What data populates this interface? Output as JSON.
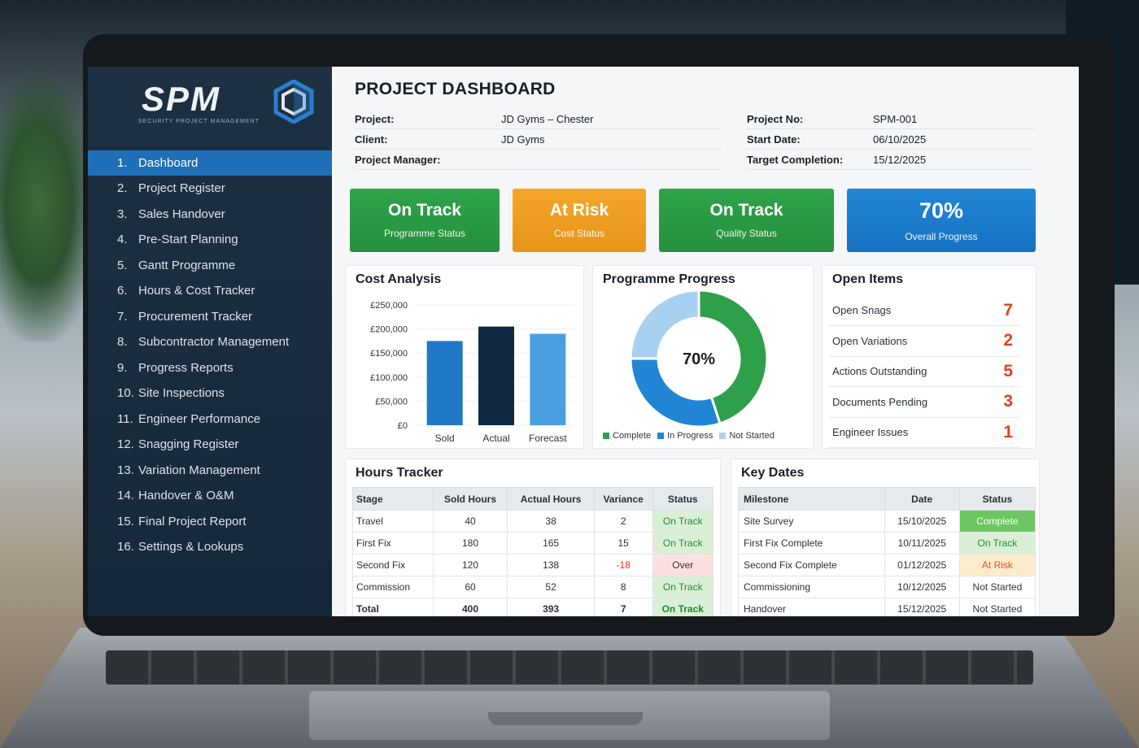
{
  "app": {
    "brand": "SPM",
    "brand_subtitle": "SECURITY PROJECT MANAGEMENT",
    "page_title": "PROJECT DASHBOARD"
  },
  "sidebar": {
    "items": [
      {
        "num": "1.",
        "label": "Dashboard",
        "active": true
      },
      {
        "num": "2.",
        "label": "Project Register"
      },
      {
        "num": "3.",
        "label": "Sales Handover"
      },
      {
        "num": "4.",
        "label": "Pre-Start Planning"
      },
      {
        "num": "5.",
        "label": "Gantt Programme"
      },
      {
        "num": "6.",
        "label": "Hours & Cost Tracker"
      },
      {
        "num": "7.",
        "label": "Procurement Tracker"
      },
      {
        "num": "8.",
        "label": "Subcontractor Management"
      },
      {
        "num": "9.",
        "label": "Progress Reports"
      },
      {
        "num": "10.",
        "label": "Site Inspections"
      },
      {
        "num": "11.",
        "label": "Engineer Performance"
      },
      {
        "num": "12.",
        "label": "Snagging Register"
      },
      {
        "num": "13.",
        "label": "Variation Management"
      },
      {
        "num": "14.",
        "label": "Handover & O&M"
      },
      {
        "num": "15.",
        "label": "Final Project Report"
      },
      {
        "num": "16.",
        "label": "Settings & Lookups"
      }
    ]
  },
  "project_info": {
    "left": [
      {
        "label": "Project:",
        "value": "JD Gyms – Chester"
      },
      {
        "label": "Client:",
        "value": "JD Gyms"
      },
      {
        "label": "Project Manager:",
        "value": ""
      }
    ],
    "right": [
      {
        "label": "Project No:",
        "value": "SPM-001"
      },
      {
        "label": "Start Date:",
        "value": "06/10/2025"
      },
      {
        "label": "Target Completion:",
        "value": "15/12/2025"
      }
    ]
  },
  "kpis": [
    {
      "value": "On Track",
      "label": "Programme Status",
      "color": "#2ea449"
    },
    {
      "value": "At Risk",
      "label": "Cost Status",
      "color": "#f4a62a"
    },
    {
      "value": "On Track",
      "label": "Quality Status",
      "color": "#2ea449"
    },
    {
      "value": "70%",
      "label": "Overall Progress",
      "color": "#2287d6"
    }
  ],
  "cost_analysis": {
    "title": "Cost Analysis",
    "chart_data": {
      "type": "bar",
      "categories": [
        "Sold",
        "Actual",
        "Forecast"
      ],
      "values": [
        175000,
        205000,
        190000
      ],
      "colors": [
        "#1f79c7",
        "#0f2a45",
        "#4b9fe0"
      ],
      "ylim": [
        0,
        250000
      ],
      "yticks": [
        "£250,000",
        "£200,000",
        "£150,000",
        "£100,000",
        "£50,000",
        "£0"
      ]
    }
  },
  "programme_progress": {
    "title": "Programme Progress",
    "center_label": "70%",
    "chart_data": {
      "type": "pie",
      "slices": [
        {
          "name": "Complete",
          "value": 45,
          "color": "#2ea04a"
        },
        {
          "name": "In Progress",
          "value": 30,
          "color": "#2185d5"
        },
        {
          "name": "Not Started",
          "value": 25,
          "color": "#a8d0f0"
        }
      ]
    }
  },
  "open_items": {
    "title": "Open Items",
    "items": [
      {
        "label": "Open Snags",
        "value": "7"
      },
      {
        "label": "Open Variations",
        "value": "2"
      },
      {
        "label": "Actions Outstanding",
        "value": "5"
      },
      {
        "label": "Documents Pending",
        "value": "3"
      },
      {
        "label": "Engineer Issues",
        "value": "1"
      }
    ]
  },
  "hours_tracker": {
    "title": "Hours Tracker",
    "headers": [
      "Stage",
      "Sold Hours",
      "Actual Hours",
      "Variance",
      "Status"
    ],
    "rows": [
      {
        "stage": "Travel",
        "sold": "40",
        "actual": "38",
        "variance": "2",
        "status": "On Track",
        "tone": "green"
      },
      {
        "stage": "First Fix",
        "sold": "180",
        "actual": "165",
        "variance": "15",
        "status": "On Track",
        "tone": "green"
      },
      {
        "stage": "Second Fix",
        "sold": "120",
        "actual": "138",
        "variance": "-18",
        "status": "Over",
        "tone": "red"
      },
      {
        "stage": "Commission",
        "sold": "60",
        "actual": "52",
        "variance": "8",
        "status": "On Track",
        "tone": "green"
      },
      {
        "stage": "Total",
        "sold": "400",
        "actual": "393",
        "variance": "7",
        "status": "On Track",
        "tone": "green"
      }
    ]
  },
  "key_dates": {
    "title": "Key Dates",
    "headers": [
      "Milestone",
      "Date",
      "Status"
    ],
    "rows": [
      {
        "milestone": "Site Survey",
        "date": "15/10/2025",
        "status": "Complete",
        "tone": "strong"
      },
      {
        "milestone": "First Fix Complete",
        "date": "10/11/2025",
        "status": "On Track",
        "tone": "green"
      },
      {
        "milestone": "Second Fix Complete",
        "date": "01/12/2025",
        "status": "At Risk",
        "tone": "amber"
      },
      {
        "milestone": "Commissioning",
        "date": "10/12/2025",
        "status": "Not Started",
        "tone": "none"
      },
      {
        "milestone": "Handover",
        "date": "15/12/2025",
        "status": "Not Started",
        "tone": "none"
      }
    ]
  }
}
